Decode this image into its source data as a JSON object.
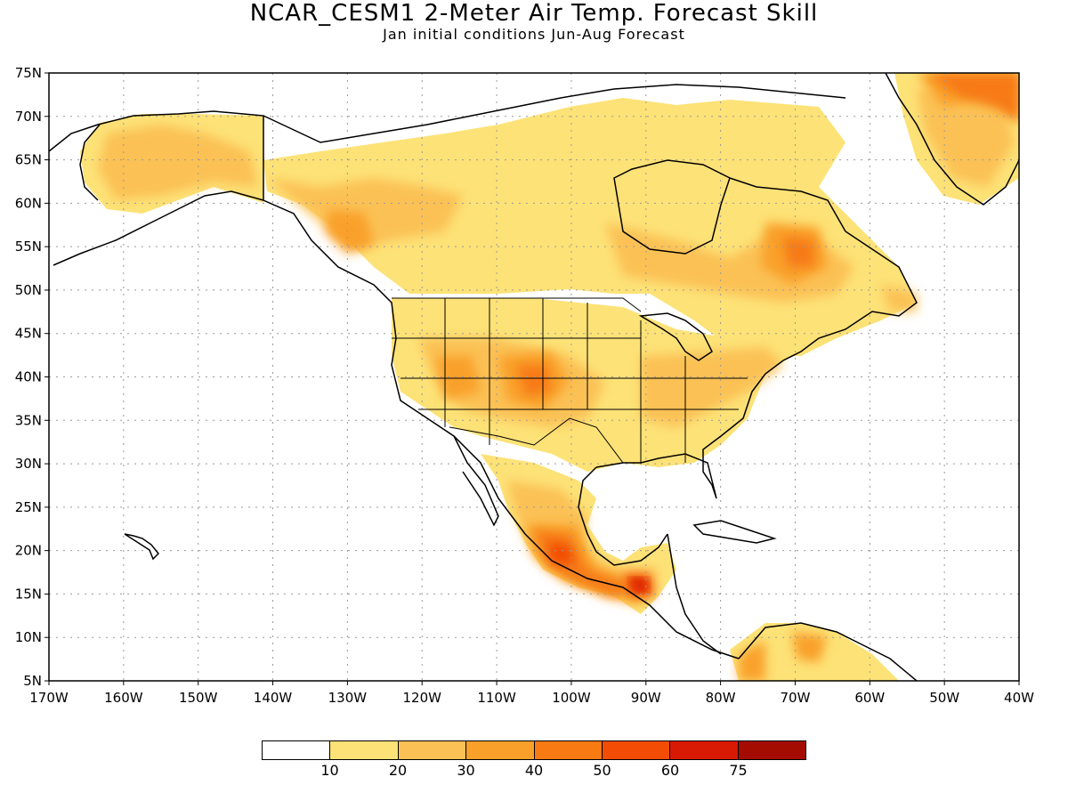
{
  "title": "NCAR_CESM1 2-Meter Air Temp. Forecast Skill",
  "subtitle": "Jan initial conditions  Jun-Aug Forecast",
  "map": {
    "projection": "lat-lon",
    "lon_range": [
      -170,
      -40
    ],
    "lat_range": [
      5,
      75
    ],
    "grid": "dotted",
    "lat_ticks": [
      "5N",
      "10N",
      "15N",
      "20N",
      "25N",
      "30N",
      "35N",
      "40N",
      "45N",
      "50N",
      "55N",
      "60N",
      "65N",
      "70N",
      "75N"
    ],
    "lon_ticks": [
      "170W",
      "160W",
      "150W",
      "140W",
      "130W",
      "120W",
      "110W",
      "100W",
      "90W",
      "80W",
      "70W",
      "60W",
      "50W",
      "40W"
    ]
  },
  "legend": {
    "labels": [
      "10",
      "20",
      "30",
      "40",
      "50",
      "60",
      "75"
    ],
    "colors": [
      "#ffffff",
      "#fde277",
      "#fbc154",
      "#f9a02b",
      "#f77a12",
      "#f24c05",
      "#d81a04",
      "#a40c02"
    ]
  },
  "colors": {
    "level1": "#fde277",
    "level2": "#fbc154",
    "level3": "#f9a02b",
    "level4": "#f77a12",
    "level5": "#f24c05",
    "level6": "#d81a04",
    "level7": "#a40c02"
  }
}
